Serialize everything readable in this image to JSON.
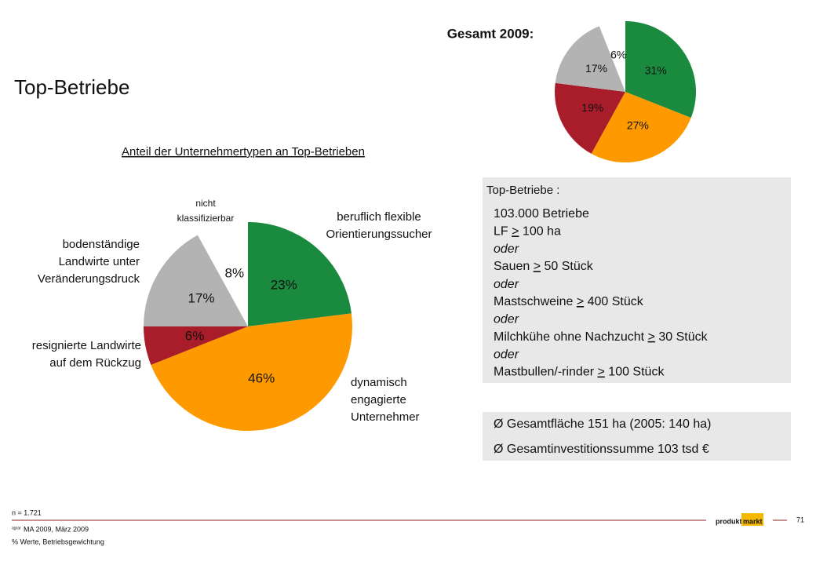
{
  "page_title": "Top-Betriebe",
  "chart_data": [
    {
      "type": "pie",
      "title": "Anteil der Unternehmertypen an Top-Betrieben",
      "categories": [
        [
          "beruflich flexible",
          "Orientierungssucher"
        ],
        [
          "dynamisch",
          "engagierte",
          "Unternehmer"
        ],
        [
          "resignierte Landwirte",
          "auf dem Rückzug"
        ],
        [
          "bodenständige",
          "Landwirte unter",
          "Veränderungsdruck"
        ],
        [
          "nicht",
          "klassifizierbar"
        ]
      ],
      "values": [
        23,
        46,
        6,
        17,
        8
      ],
      "value_labels": [
        "23%",
        "46%",
        "6%",
        "17%",
        "8%"
      ],
      "colors": [
        "#1a8a3e",
        "#ff9900",
        "#a91d2b",
        "#b3b3b3",
        "#ffffff"
      ]
    },
    {
      "type": "pie",
      "title": "Gesamt 2009:",
      "values": [
        31,
        27,
        19,
        17,
        6
      ],
      "value_labels": [
        "31%",
        "27%",
        "19%",
        "17%",
        "6%"
      ],
      "colors": [
        "#1a8a3e",
        "#ff9900",
        "#a91d2b",
        "#b3b3b3",
        "#ffffff"
      ]
    }
  ],
  "criteria_box": {
    "heading": "Top-Betriebe :",
    "lines": [
      {
        "text": "103.000 Betriebe",
        "italic": false
      },
      {
        "text": "LF > 100 ha",
        "italic": false
      },
      {
        "text": "oder",
        "italic": true
      },
      {
        "text": "Sauen > 50 Stück",
        "italic": false
      },
      {
        "text": "oder",
        "italic": true
      },
      {
        "text": "Mastschweine > 400 Stück",
        "italic": false
      },
      {
        "text": "oder",
        "italic": true
      },
      {
        "text": "Milchkühe ohne Nachzucht > 30 Stück",
        "italic": false
      },
      {
        "text": "oder",
        "italic": true
      },
      {
        "text": "Mastbullen/-rinder > 100 Stück",
        "italic": false
      }
    ]
  },
  "stats_box": {
    "lines": [
      "Ø Gesamtfläche 151 ha (2005: 140 ha)",
      "Ø Gesamtinvestitionssumme 103 tsd €"
    ]
  },
  "footer": {
    "sample": "n = 1.721",
    "source_prefix": "agrar",
    "source": "MA 2009, März 2009",
    "note": "% Werte, Betriebsgewichtung",
    "page_number": "71",
    "logo": [
      "produkt",
      "markt"
    ]
  }
}
